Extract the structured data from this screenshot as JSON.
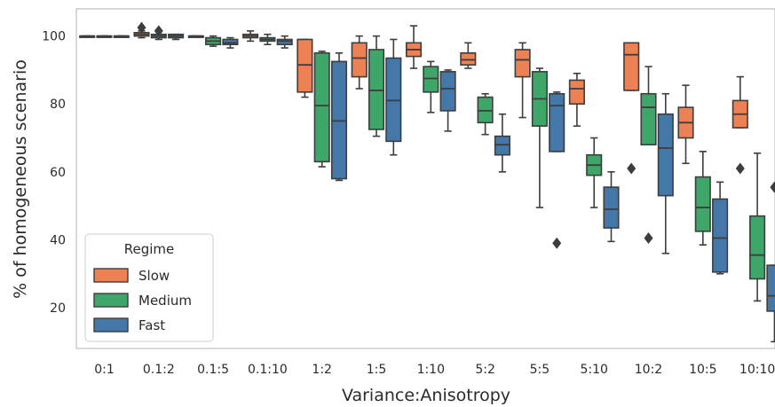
{
  "chart_data": {
    "type": "boxplot",
    "title": "",
    "xlabel": "Variance:Anisotropy",
    "ylabel": "% of homogeneous scenario",
    "ylim": [
      8,
      108
    ],
    "yticks": [
      20,
      40,
      60,
      80,
      100
    ],
    "grid": false,
    "legend": {
      "title": "Regime",
      "placement": "bottom-left"
    },
    "categories": [
      "0:1",
      "0.1:2",
      "0.1:5",
      "0.1:10",
      "1:2",
      "1:5",
      "1:10",
      "5:2",
      "5:5",
      "5:10",
      "10:2",
      "10:5",
      "10:10"
    ],
    "series": [
      {
        "name": "Slow",
        "color": "#ee8154",
        "boxes": [
          {
            "whislo": 100,
            "q1": 100,
            "med": 100,
            "q3": 100,
            "whishi": 100,
            "fliers": []
          },
          {
            "whislo": 99.5,
            "q1": 100,
            "med": 100.5,
            "q3": 101,
            "whishi": 101.5,
            "fliers": [
              102.5
            ]
          },
          {
            "whislo": 100,
            "q1": 100,
            "med": 100,
            "q3": 100,
            "whishi": 100,
            "fliers": []
          },
          {
            "whislo": 98.5,
            "q1": 99.5,
            "med": 100,
            "q3": 100.5,
            "whishi": 101.5,
            "fliers": []
          },
          {
            "whislo": 82,
            "q1": 83.5,
            "med": 91.5,
            "q3": 99,
            "whishi": 99,
            "fliers": []
          },
          {
            "whislo": 84.5,
            "q1": 88,
            "med": 93.5,
            "q3": 98,
            "whishi": 100,
            "fliers": []
          },
          {
            "whislo": 90.5,
            "q1": 94,
            "med": 96,
            "q3": 98,
            "whishi": 103,
            "fliers": []
          },
          {
            "whislo": 90.5,
            "q1": 91.5,
            "med": 93,
            "q3": 95,
            "whishi": 98,
            "fliers": []
          },
          {
            "whislo": 76,
            "q1": 88,
            "med": 93,
            "q3": 96,
            "whishi": 98,
            "fliers": []
          },
          {
            "whislo": 73.5,
            "q1": 80,
            "med": 84.5,
            "q3": 87,
            "whishi": 89,
            "fliers": []
          },
          {
            "whislo": 84,
            "q1": 84,
            "med": 94.5,
            "q3": 98,
            "whishi": 98,
            "fliers": [
              61
            ]
          },
          {
            "whislo": 62.5,
            "q1": 70,
            "med": 74.5,
            "q3": 79,
            "whishi": 85.5,
            "fliers": []
          },
          {
            "whislo": 73,
            "q1": 73,
            "med": 77,
            "q3": 81,
            "whishi": 88,
            "fliers": [
              61
            ]
          }
        ]
      },
      {
        "name": "Medium",
        "color": "#3fa66a",
        "boxes": [
          {
            "whislo": 100,
            "q1": 100,
            "med": 100,
            "q3": 100,
            "whishi": 100,
            "fliers": []
          },
          {
            "whislo": 99,
            "q1": 99.5,
            "med": 100,
            "q3": 100.5,
            "whishi": 100.5,
            "fliers": [
              101.5
            ]
          },
          {
            "whislo": 97,
            "q1": 97.5,
            "med": 98.5,
            "q3": 99.5,
            "whishi": 100,
            "fliers": []
          },
          {
            "whislo": 97.5,
            "q1": 98.5,
            "med": 99,
            "q3": 99.5,
            "whishi": 100.5,
            "fliers": []
          },
          {
            "whislo": 61.5,
            "q1": 63,
            "med": 79.5,
            "q3": 95,
            "whishi": 95.5,
            "fliers": []
          },
          {
            "whislo": 70.5,
            "q1": 72.5,
            "med": 84,
            "q3": 96,
            "whishi": 100,
            "fliers": []
          },
          {
            "whislo": 77.5,
            "q1": 83.5,
            "med": 87.5,
            "q3": 91,
            "whishi": 92.5,
            "fliers": []
          },
          {
            "whislo": 71,
            "q1": 74.5,
            "med": 78,
            "q3": 82,
            "whishi": 83,
            "fliers": []
          },
          {
            "whislo": 49.5,
            "q1": 73.5,
            "med": 81.5,
            "q3": 89.5,
            "whishi": 90.5,
            "fliers": []
          },
          {
            "whislo": 49.5,
            "q1": 59,
            "med": 62,
            "q3": 65,
            "whishi": 70,
            "fliers": []
          },
          {
            "whislo": 68,
            "q1": 68,
            "med": 79,
            "q3": 83,
            "whishi": 91,
            "fliers": [
              40.5
            ]
          },
          {
            "whislo": 38.5,
            "q1": 42.5,
            "med": 49.5,
            "q3": 58.5,
            "whishi": 66,
            "fliers": []
          },
          {
            "whislo": 22,
            "q1": 28.5,
            "med": 35.5,
            "q3": 47,
            "whishi": 65.5,
            "fliers": []
          }
        ]
      },
      {
        "name": "Fast",
        "color": "#4478a8",
        "boxes": [
          {
            "whislo": 100,
            "q1": 100,
            "med": 100,
            "q3": 100,
            "whishi": 100,
            "fliers": []
          },
          {
            "whislo": 99,
            "q1": 99.5,
            "med": 100,
            "q3": 100.5,
            "whishi": 100.5,
            "fliers": []
          },
          {
            "whislo": 96.5,
            "q1": 97.5,
            "med": 98,
            "q3": 99,
            "whishi": 99.5,
            "fliers": []
          },
          {
            "whislo": 96.5,
            "q1": 97.5,
            "med": 98.5,
            "q3": 99,
            "whishi": 100,
            "fliers": []
          },
          {
            "whislo": 57.5,
            "q1": 58,
            "med": 75,
            "q3": 92.5,
            "whishi": 95,
            "fliers": []
          },
          {
            "whislo": 65,
            "q1": 69,
            "med": 81,
            "q3": 93.5,
            "whishi": 99,
            "fliers": []
          },
          {
            "whislo": 72,
            "q1": 78,
            "med": 84.5,
            "q3": 89.5,
            "whishi": 90,
            "fliers": []
          },
          {
            "whislo": 60,
            "q1": 65,
            "med": 68,
            "q3": 70.5,
            "whishi": 77,
            "fliers": []
          },
          {
            "whislo": 66,
            "q1": 66,
            "med": 79.5,
            "q3": 83,
            "whishi": 83.5,
            "fliers": [
              39
            ]
          },
          {
            "whislo": 39.5,
            "q1": 43.5,
            "med": 49,
            "q3": 55.5,
            "whishi": 60,
            "fliers": []
          },
          {
            "whislo": 36,
            "q1": 53,
            "med": 67,
            "q3": 77,
            "whishi": 83,
            "fliers": []
          },
          {
            "whislo": 30,
            "q1": 30.5,
            "med": 40.5,
            "q3": 52,
            "whishi": 57,
            "fliers": []
          },
          {
            "whislo": 10,
            "q1": 19,
            "med": 23.5,
            "q3": 32.5,
            "whishi": 32.5,
            "fliers": [
              55.5
            ]
          }
        ]
      }
    ]
  }
}
